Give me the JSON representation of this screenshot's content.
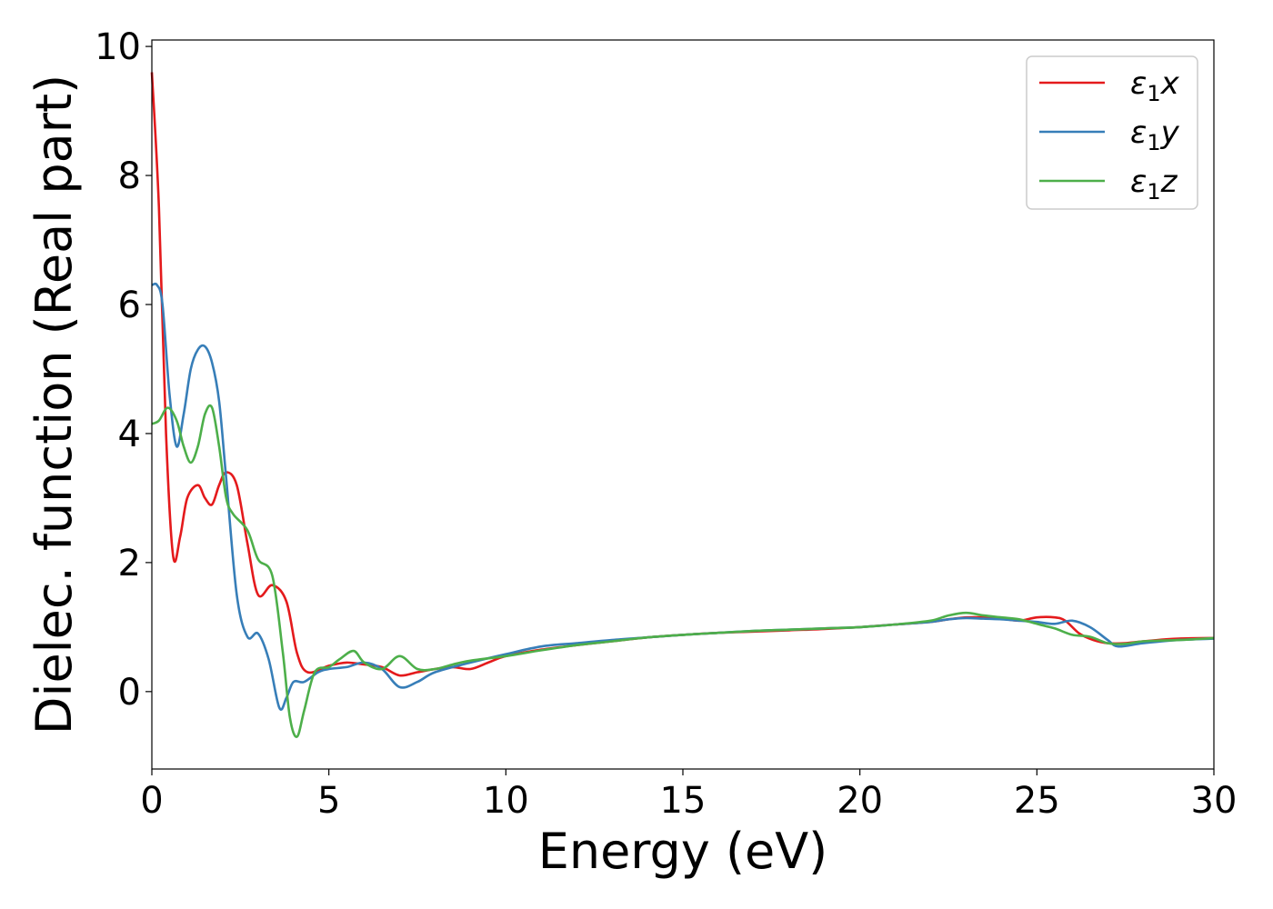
{
  "chart_data": {
    "type": "line",
    "title": "",
    "xlabel": "Energy (eV)",
    "ylabel": "Dielec. function (Real part)",
    "xlim": [
      0,
      30
    ],
    "ylim": [
      -1.2,
      10.1
    ],
    "xticks": [
      0,
      5,
      10,
      15,
      20,
      25,
      30
    ],
    "yticks": [
      0,
      2,
      4,
      6,
      8,
      10
    ],
    "grid": false,
    "legend_position": "top-right",
    "series": [
      {
        "name": "ε1x",
        "name_base": "ε",
        "name_sub": "1",
        "name_var": "x",
        "color": "#e41a1c",
        "x": [
          0,
          0.2,
          0.4,
          0.6,
          0.8,
          1.0,
          1.3,
          1.5,
          1.7,
          1.9,
          2.1,
          2.4,
          2.7,
          3.0,
          3.4,
          3.8,
          4.1,
          4.4,
          5.0,
          5.5,
          6.0,
          6.5,
          7.0,
          7.5,
          8.0,
          8.5,
          9.0,
          9.5,
          10.0,
          11.0,
          12.0,
          13.0,
          14.0,
          15.0,
          16.0,
          17.0,
          18.0,
          19.0,
          20.0,
          21.0,
          22.0,
          22.5,
          23.0,
          23.5,
          24.0,
          24.5,
          25.0,
          25.5,
          25.8,
          26.2,
          26.6,
          27.0,
          27.5,
          28.0,
          29.0,
          30.0
        ],
        "y": [
          9.6,
          7.5,
          4.0,
          2.1,
          2.4,
          3.0,
          3.2,
          3.0,
          2.9,
          3.2,
          3.4,
          3.2,
          2.3,
          1.5,
          1.65,
          1.4,
          0.6,
          0.3,
          0.4,
          0.45,
          0.42,
          0.38,
          0.25,
          0.3,
          0.35,
          0.38,
          0.35,
          0.45,
          0.55,
          0.65,
          0.72,
          0.78,
          0.84,
          0.88,
          0.91,
          0.93,
          0.95,
          0.97,
          1.0,
          1.04,
          1.08,
          1.12,
          1.15,
          1.15,
          1.13,
          1.1,
          1.15,
          1.15,
          1.1,
          0.9,
          0.8,
          0.75,
          0.75,
          0.78,
          0.82,
          0.83
        ]
      },
      {
        "name": "ε1y",
        "name_base": "ε",
        "name_sub": "1",
        "name_var": "y",
        "color": "#377eb8",
        "x": [
          0,
          0.15,
          0.3,
          0.5,
          0.7,
          0.9,
          1.1,
          1.3,
          1.5,
          1.7,
          1.9,
          2.1,
          2.4,
          2.7,
          3.0,
          3.3,
          3.6,
          3.8,
          4.0,
          4.3,
          4.7,
          5.0,
          5.5,
          6.0,
          6.5,
          7.0,
          7.5,
          8.0,
          9.0,
          10.0,
          11.0,
          12.0,
          13.0,
          14.0,
          15.0,
          16.0,
          17.0,
          18.0,
          19.0,
          20.0,
          21.0,
          22.0,
          22.5,
          23.0,
          23.5,
          24.0,
          24.5,
          25.0,
          25.5,
          26.0,
          26.5,
          27.0,
          27.3,
          28.0,
          29.0,
          30.0
        ],
        "y": [
          6.3,
          6.3,
          6.0,
          4.6,
          3.8,
          4.3,
          5.0,
          5.3,
          5.35,
          5.1,
          4.5,
          3.3,
          1.5,
          0.85,
          0.9,
          0.5,
          -0.25,
          -0.1,
          0.15,
          0.15,
          0.3,
          0.35,
          0.38,
          0.45,
          0.35,
          0.07,
          0.15,
          0.3,
          0.45,
          0.58,
          0.7,
          0.75,
          0.8,
          0.84,
          0.88,
          0.91,
          0.94,
          0.96,
          0.98,
          1.0,
          1.04,
          1.08,
          1.12,
          1.14,
          1.13,
          1.12,
          1.1,
          1.08,
          1.05,
          1.1,
          1.0,
          0.8,
          0.7,
          0.75,
          0.8,
          0.82
        ]
      },
      {
        "name": "ε1z",
        "name_base": "ε",
        "name_sub": "1",
        "name_var": "z",
        "color": "#4daf4a",
        "x": [
          0,
          0.2,
          0.45,
          0.7,
          0.9,
          1.1,
          1.3,
          1.5,
          1.7,
          1.9,
          2.1,
          2.3,
          2.7,
          3.0,
          3.4,
          3.7,
          3.9,
          4.1,
          4.3,
          4.6,
          5.0,
          5.3,
          5.7,
          6.0,
          6.5,
          7.0,
          7.5,
          8.0,
          8.5,
          9.0,
          10.0,
          11.0,
          12.0,
          13.0,
          14.0,
          15.0,
          16.0,
          17.0,
          18.0,
          19.0,
          20.0,
          21.0,
          22.0,
          22.5,
          23.0,
          23.5,
          24.0,
          24.5,
          25.0,
          25.5,
          26.0,
          26.5,
          27.0,
          27.5,
          28.0,
          29.0,
          30.0
        ],
        "y": [
          4.15,
          4.2,
          4.4,
          4.2,
          3.8,
          3.55,
          3.8,
          4.3,
          4.4,
          3.8,
          3.0,
          2.75,
          2.5,
          2.05,
          1.8,
          0.6,
          -0.4,
          -0.7,
          -0.3,
          0.3,
          0.38,
          0.5,
          0.63,
          0.45,
          0.35,
          0.55,
          0.35,
          0.35,
          0.42,
          0.48,
          0.55,
          0.64,
          0.72,
          0.78,
          0.84,
          0.88,
          0.91,
          0.94,
          0.96,
          0.98,
          1.0,
          1.04,
          1.1,
          1.18,
          1.22,
          1.18,
          1.15,
          1.12,
          1.05,
          0.98,
          0.88,
          0.85,
          0.75,
          0.74,
          0.78,
          0.8,
          0.83
        ]
      }
    ]
  }
}
